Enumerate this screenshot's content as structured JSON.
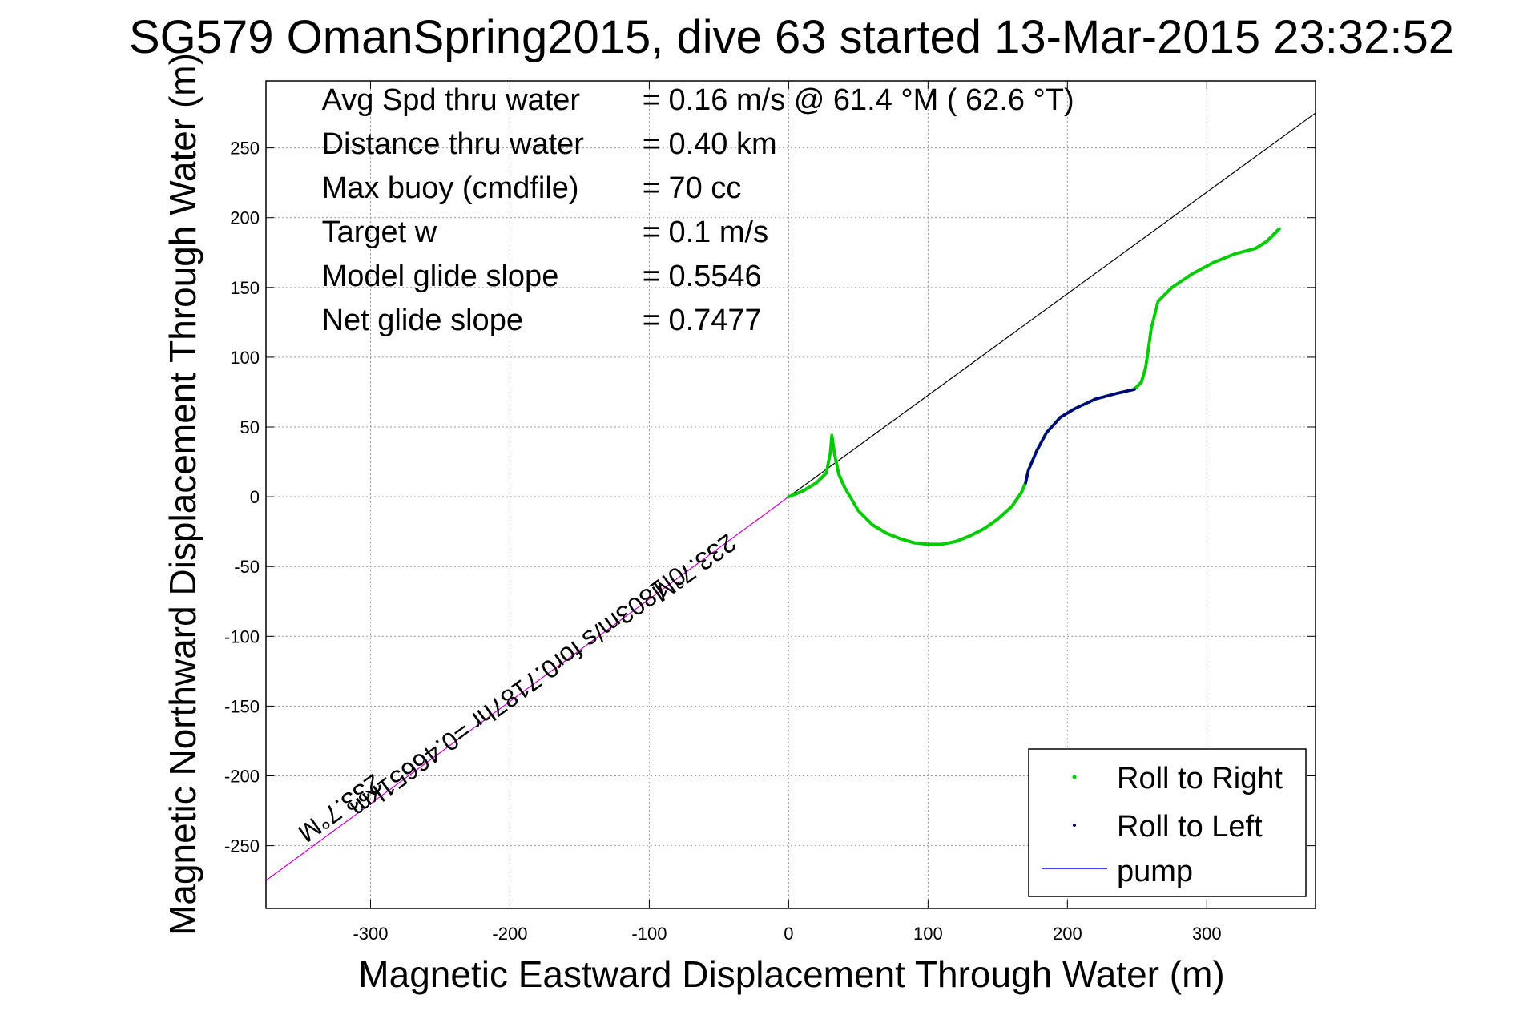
{
  "chart_data": {
    "type": "line",
    "title": "SG579 OmanSpring2015, dive 63 started 13-Mar-2015 23:32:52",
    "xlabel": "Magnetic Eastward Displacement Through Water (m)",
    "ylabel": "Magnetic Northward Displacement Through Water (m)",
    "xlim": [
      -375,
      378
    ],
    "ylim": [
      -295,
      298
    ],
    "xticks": [
      -300,
      -200,
      -100,
      0,
      100,
      200,
      300
    ],
    "yticks": [
      250,
      200,
      150,
      100,
      50,
      0,
      -50,
      -100,
      -150,
      -200,
      -250
    ],
    "grid": true,
    "legend_position": "bottom-right",
    "stats": [
      {
        "label": "Avg Spd thru water",
        "value": "=  0.16 m/s @  61.4 °M ( 62.6 °T)"
      },
      {
        "label": "Distance thru water",
        "value": "=  0.40 km"
      },
      {
        "label": "Max buoy (cmdfile)",
        "value": "= 70 cc"
      },
      {
        "label": "Target w",
        "value": "= 0.1 m/s"
      },
      {
        "label": "Model glide slope",
        "value": "= 0.5546"
      },
      {
        "label": "Net glide slope",
        "value": "= 0.7477"
      }
    ],
    "annotations": [
      "0.1803m/s for0.7187hr =0.46651km",
      "233.7°M",
      "233.7°M"
    ],
    "series": [
      {
        "name": "Roll to Right",
        "color": "#00cc00",
        "marker": "dot",
        "x": [
          0,
          10,
          20,
          27,
          30,
          31,
          33,
          36,
          40,
          50,
          60,
          70,
          80,
          90,
          100,
          110,
          120,
          130,
          140,
          150,
          160,
          167,
          170,
          172,
          178,
          185,
          195,
          205,
          220,
          235,
          248,
          253,
          256,
          258,
          260,
          265,
          275,
          290,
          305,
          320,
          335,
          343,
          348,
          352
        ],
        "y": [
          0,
          4,
          10,
          17,
          32,
          44,
          30,
          16,
          7,
          -10,
          -20,
          -26,
          -30,
          -33,
          -34,
          -34,
          -32,
          -28,
          -23,
          -16,
          -7,
          3,
          10,
          19,
          33,
          46,
          57,
          63,
          70,
          74,
          77,
          82,
          92,
          105,
          120,
          140,
          150,
          160,
          168,
          174,
          178,
          183,
          188,
          192
        ]
      },
      {
        "name": "Roll to Left",
        "color": "#000080",
        "marker": "dot",
        "x": [
          170,
          172,
          178,
          185,
          195,
          205,
          220,
          235,
          248
        ],
        "y": [
          10,
          19,
          33,
          46,
          57,
          63,
          70,
          74,
          77
        ]
      },
      {
        "name": "pump",
        "color": "#0000ff",
        "marker": "line",
        "x": [],
        "y": []
      }
    ],
    "reference_lines": [
      {
        "color": "#000000",
        "x": [
          0,
          378
        ],
        "y": [
          0,
          275
        ]
      },
      {
        "color": "#cc00cc",
        "x": [
          0,
          -375
        ],
        "y": [
          0,
          -275
        ]
      }
    ]
  }
}
